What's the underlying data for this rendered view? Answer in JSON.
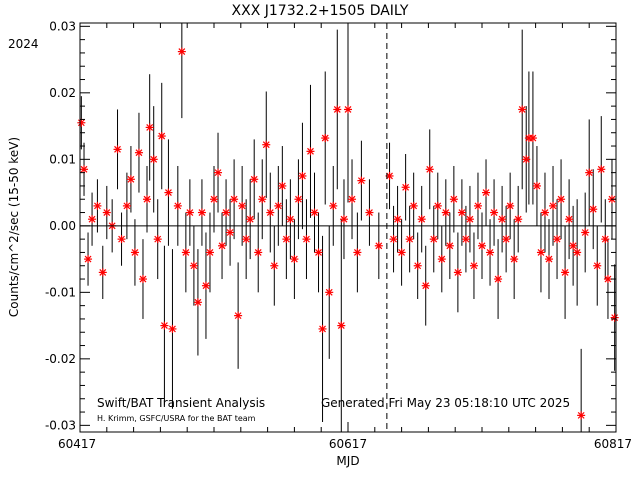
{
  "chart_data": {
    "type": "scatter",
    "title": "XXX J1732.2+1505 DAILY",
    "xlabel": "MJD",
    "ylabel": "Counts/cm^2/sec (15-50 keV)",
    "corner_label": "2024",
    "xlim": [
      60417,
      60817
    ],
    "ylim": [
      -0.031,
      0.0305
    ],
    "x_ticks": [
      60417,
      60617,
      60817
    ],
    "y_ticks": [
      -0.03,
      -0.02,
      -0.01,
      0.0,
      0.01,
      0.02,
      0.03
    ],
    "x_tick_labels": [
      "60417",
      "60617",
      "60817"
    ],
    "y_tick_labels": [
      "-0.03",
      "-0.02",
      "-0.01",
      "0.00",
      "0.01",
      "0.02",
      "0.03"
    ],
    "zero_line": true,
    "reference_line_x": 60646,
    "marker": "asterisk",
    "marker_color": "#ff0000",
    "errorbar_color": "#000000",
    "footer_left": "Swift/BAT Transient Analysis",
    "footer_credit": "H. Krimm, GSFC/USRA for the BAT team",
    "footer_right": "Generated Fri May 23 05:18:10 UTC 2025",
    "points": [
      {
        "x": 60418,
        "y": 0.0155,
        "err": 0.004
      },
      {
        "x": 60420,
        "y": 0.0085,
        "err": 0.004
      },
      {
        "x": 60423,
        "y": -0.005,
        "err": 0.004
      },
      {
        "x": 60426,
        "y": 0.001,
        "err": 0.004
      },
      {
        "x": 60430,
        "y": 0.003,
        "err": 0.004
      },
      {
        "x": 60434,
        "y": -0.007,
        "err": 0.004
      },
      {
        "x": 60437,
        "y": 0.002,
        "err": 0.004
      },
      {
        "x": 60441,
        "y": 0.0,
        "err": 0.004
      },
      {
        "x": 60445,
        "y": 0.0115,
        "err": 0.006
      },
      {
        "x": 60448,
        "y": -0.002,
        "err": 0.004
      },
      {
        "x": 60452,
        "y": 0.003,
        "err": 0.005
      },
      {
        "x": 60455,
        "y": 0.007,
        "err": 0.005
      },
      {
        "x": 60458,
        "y": -0.004,
        "err": 0.005
      },
      {
        "x": 60461,
        "y": 0.011,
        "err": 0.006
      },
      {
        "x": 60464,
        "y": -0.008,
        "err": 0.006
      },
      {
        "x": 60467,
        "y": 0.004,
        "err": 0.005
      },
      {
        "x": 60469,
        "y": 0.0148,
        "err": 0.008
      },
      {
        "x": 60472,
        "y": 0.01,
        "err": 0.008
      },
      {
        "x": 60475,
        "y": -0.002,
        "err": 0.006
      },
      {
        "x": 60478,
        "y": 0.0135,
        "err": 0.008
      },
      {
        "x": 60480,
        "y": -0.015,
        "err": 0.012
      },
      {
        "x": 60483,
        "y": 0.005,
        "err": 0.008
      },
      {
        "x": 60486,
        "y": -0.0155,
        "err": 0.012
      },
      {
        "x": 60490,
        "y": 0.003,
        "err": 0.006
      },
      {
        "x": 60493,
        "y": 0.0262,
        "err": 0.01
      },
      {
        "x": 60496,
        "y": -0.004,
        "err": 0.006
      },
      {
        "x": 60499,
        "y": 0.002,
        "err": 0.005
      },
      {
        "x": 60502,
        "y": -0.006,
        "err": 0.006
      },
      {
        "x": 60505,
        "y": -0.0115,
        "err": 0.008
      },
      {
        "x": 60508,
        "y": 0.002,
        "err": 0.005
      },
      {
        "x": 60511,
        "y": -0.009,
        "err": 0.008
      },
      {
        "x": 60514,
        "y": -0.004,
        "err": 0.006
      },
      {
        "x": 60517,
        "y": 0.004,
        "err": 0.005
      },
      {
        "x": 60520,
        "y": 0.008,
        "err": 0.006
      },
      {
        "x": 60523,
        "y": -0.003,
        "err": 0.005
      },
      {
        "x": 60526,
        "y": 0.002,
        "err": 0.005
      },
      {
        "x": 60529,
        "y": -0.001,
        "err": 0.005
      },
      {
        "x": 60532,
        "y": 0.004,
        "err": 0.006
      },
      {
        "x": 60535,
        "y": -0.0135,
        "err": 0.008
      },
      {
        "x": 60538,
        "y": 0.003,
        "err": 0.006
      },
      {
        "x": 60541,
        "y": -0.002,
        "err": 0.006
      },
      {
        "x": 60544,
        "y": 0.001,
        "err": 0.006
      },
      {
        "x": 60547,
        "y": 0.007,
        "err": 0.006
      },
      {
        "x": 60550,
        "y": -0.004,
        "err": 0.006
      },
      {
        "x": 60553,
        "y": 0.004,
        "err": 0.006
      },
      {
        "x": 60556,
        "y": 0.0122,
        "err": 0.008
      },
      {
        "x": 60559,
        "y": 0.002,
        "err": 0.006
      },
      {
        "x": 60562,
        "y": -0.006,
        "err": 0.006
      },
      {
        "x": 60565,
        "y": 0.003,
        "err": 0.006
      },
      {
        "x": 60568,
        "y": 0.006,
        "err": 0.006
      },
      {
        "x": 60571,
        "y": -0.002,
        "err": 0.006
      },
      {
        "x": 60574,
        "y": 0.001,
        "err": 0.006
      },
      {
        "x": 60577,
        "y": -0.005,
        "err": 0.006
      },
      {
        "x": 60580,
        "y": 0.004,
        "err": 0.006
      },
      {
        "x": 60583,
        "y": 0.0075,
        "err": 0.008
      },
      {
        "x": 60586,
        "y": -0.002,
        "err": 0.006
      },
      {
        "x": 60589,
        "y": 0.0112,
        "err": 0.01
      },
      {
        "x": 60592,
        "y": 0.002,
        "err": 0.006
      },
      {
        "x": 60595,
        "y": -0.004,
        "err": 0.006
      },
      {
        "x": 60598,
        "y": -0.0155,
        "err": 0.014
      },
      {
        "x": 60600,
        "y": 0.0132,
        "err": 0.01
      },
      {
        "x": 60603,
        "y": -0.01,
        "err": 0.01
      },
      {
        "x": 60606,
        "y": 0.003,
        "err": 0.006
      },
      {
        "x": 60609,
        "y": 0.0175,
        "err": 0.012
      },
      {
        "x": 60612,
        "y": -0.015,
        "err": 0.016
      },
      {
        "x": 60614,
        "y": 0.001,
        "err": 0.006
      },
      {
        "x": 60617,
        "y": 0.0175,
        "err": 0.014
      },
      {
        "x": 60620,
        "y": 0.004,
        "err": 0.006
      },
      {
        "x": 60624,
        "y": -0.004,
        "err": 0.006
      },
      {
        "x": 60627,
        "y": 0.0068,
        "err": 0.006
      },
      {
        "x": 60633,
        "y": 0.002,
        "err": 0.005
      },
      {
        "x": 60640,
        "y": -0.003,
        "err": 0.005
      },
      {
        "x": 60648,
        "y": 0.0075,
        "err": 0.005
      },
      {
        "x": 60651,
        "y": -0.002,
        "err": 0.005
      },
      {
        "x": 60654,
        "y": 0.001,
        "err": 0.005
      },
      {
        "x": 60657,
        "y": -0.004,
        "err": 0.005
      },
      {
        "x": 60660,
        "y": 0.0058,
        "err": 0.005
      },
      {
        "x": 60663,
        "y": -0.002,
        "err": 0.005
      },
      {
        "x": 60666,
        "y": 0.003,
        "err": 0.005
      },
      {
        "x": 60669,
        "y": -0.006,
        "err": 0.005
      },
      {
        "x": 60672,
        "y": 0.001,
        "err": 0.005
      },
      {
        "x": 60675,
        "y": -0.009,
        "err": 0.006
      },
      {
        "x": 60678,
        "y": 0.0085,
        "err": 0.006
      },
      {
        "x": 60681,
        "y": -0.002,
        "err": 0.005
      },
      {
        "x": 60684,
        "y": 0.003,
        "err": 0.005
      },
      {
        "x": 60687,
        "y": -0.005,
        "err": 0.005
      },
      {
        "x": 60690,
        "y": 0.002,
        "err": 0.005
      },
      {
        "x": 60693,
        "y": -0.003,
        "err": 0.005
      },
      {
        "x": 60696,
        "y": 0.004,
        "err": 0.005
      },
      {
        "x": 60699,
        "y": -0.007,
        "err": 0.006
      },
      {
        "x": 60702,
        "y": 0.002,
        "err": 0.005
      },
      {
        "x": 60705,
        "y": -0.002,
        "err": 0.005
      },
      {
        "x": 60708,
        "y": 0.001,
        "err": 0.005
      },
      {
        "x": 60711,
        "y": -0.006,
        "err": 0.005
      },
      {
        "x": 60714,
        "y": 0.003,
        "err": 0.005
      },
      {
        "x": 60717,
        "y": -0.003,
        "err": 0.005
      },
      {
        "x": 60720,
        "y": 0.005,
        "err": 0.005
      },
      {
        "x": 60723,
        "y": -0.004,
        "err": 0.005
      },
      {
        "x": 60726,
        "y": 0.002,
        "err": 0.005
      },
      {
        "x": 60729,
        "y": -0.008,
        "err": 0.006
      },
      {
        "x": 60732,
        "y": 0.001,
        "err": 0.005
      },
      {
        "x": 60735,
        "y": -0.002,
        "err": 0.005
      },
      {
        "x": 60738,
        "y": 0.003,
        "err": 0.005
      },
      {
        "x": 60741,
        "y": -0.005,
        "err": 0.006
      },
      {
        "x": 60744,
        "y": 0.001,
        "err": 0.005
      },
      {
        "x": 60747,
        "y": 0.0175,
        "err": 0.012
      },
      {
        "x": 60750,
        "y": 0.01,
        "err": 0.008
      },
      {
        "x": 60752,
        "y": 0.0132,
        "err": 0.01
      },
      {
        "x": 60755,
        "y": 0.0132,
        "err": 0.01
      },
      {
        "x": 60758,
        "y": 0.006,
        "err": 0.006
      },
      {
        "x": 60761,
        "y": -0.004,
        "err": 0.006
      },
      {
        "x": 60764,
        "y": 0.002,
        "err": 0.006
      },
      {
        "x": 60767,
        "y": -0.005,
        "err": 0.006
      },
      {
        "x": 60770,
        "y": 0.003,
        "err": 0.006
      },
      {
        "x": 60773,
        "y": -0.002,
        "err": 0.006
      },
      {
        "x": 60776,
        "y": 0.004,
        "err": 0.006
      },
      {
        "x": 60779,
        "y": -0.007,
        "err": 0.007
      },
      {
        "x": 60782,
        "y": 0.001,
        "err": 0.006
      },
      {
        "x": 60785,
        "y": -0.003,
        "err": 0.006
      },
      {
        "x": 60788,
        "y": -0.004,
        "err": 0.008
      },
      {
        "x": 60791,
        "y": -0.0285,
        "err": 0.01
      },
      {
        "x": 60794,
        "y": -0.001,
        "err": 0.006
      },
      {
        "x": 60797,
        "y": 0.008,
        "err": 0.008
      },
      {
        "x": 60800,
        "y": 0.0025,
        "err": 0.006
      },
      {
        "x": 60803,
        "y": -0.006,
        "err": 0.006
      },
      {
        "x": 60806,
        "y": 0.0085,
        "err": 0.008
      },
      {
        "x": 60809,
        "y": -0.002,
        "err": 0.006
      },
      {
        "x": 60811,
        "y": -0.008,
        "err": 0.006
      },
      {
        "x": 60814,
        "y": 0.004,
        "err": 0.006
      },
      {
        "x": 60816,
        "y": -0.0138,
        "err": 0.008
      }
    ]
  }
}
